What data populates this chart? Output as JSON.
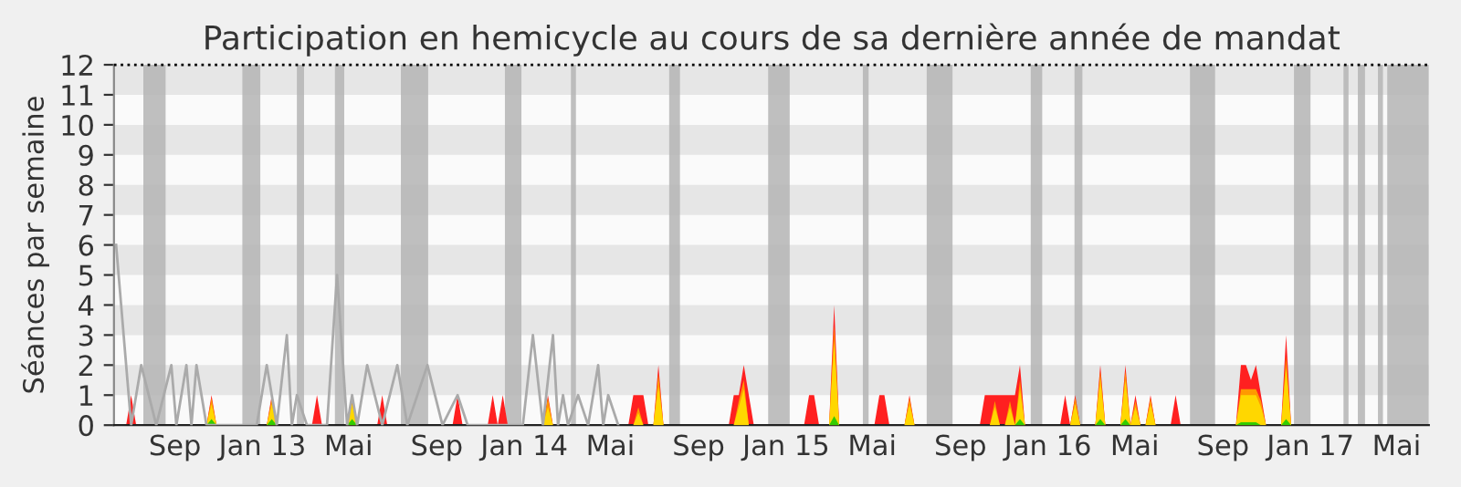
{
  "chart_data": {
    "type": "area",
    "title": "Participation en hemicycle au cours de sa dernière année de mandat",
    "ylabel": "Séances par semaine",
    "x": [
      "2012-06-25",
      "2012-07-02",
      "2012-07-09",
      "2012-10-15",
      "2012-10-22",
      "2012-10-29",
      "2013-01-07",
      "2013-01-14",
      "2013-01-21",
      "2013-03-11",
      "2013-03-18",
      "2013-03-25",
      "2013-04-29",
      "2013-05-06",
      "2013-05-13",
      "2013-06-10",
      "2013-06-17",
      "2013-06-24",
      "2013-09-23",
      "2013-09-30",
      "2013-10-07",
      "2013-11-11",
      "2013-11-18",
      "2013-11-25",
      "2013-12-02",
      "2013-12-09",
      "2014-01-27",
      "2014-02-03",
      "2014-02-10",
      "2014-05-26",
      "2014-06-02",
      "2014-06-09",
      "2014-06-16",
      "2014-06-23",
      "2014-06-30",
      "2014-07-07",
      "2014-07-14",
      "2014-10-13",
      "2014-10-20",
      "2014-10-27",
      "2014-11-03",
      "2014-11-10",
      "2014-11-17",
      "2015-01-26",
      "2015-02-02",
      "2015-02-09",
      "2015-02-16",
      "2015-03-02",
      "2015-03-09",
      "2015-03-16",
      "2015-05-04",
      "2015-05-11",
      "2015-05-18",
      "2015-05-25",
      "2015-06-15",
      "2015-06-22",
      "2015-06-29",
      "2015-09-28",
      "2015-10-05",
      "2015-10-12",
      "2015-10-19",
      "2015-10-26",
      "2015-11-02",
      "2015-11-09",
      "2015-11-16",
      "2015-11-23",
      "2015-11-30",
      "2016-01-18",
      "2016-01-25",
      "2016-02-01",
      "2016-02-08",
      "2016-02-15",
      "2016-03-07",
      "2016-03-14",
      "2016-03-21",
      "2016-04-11",
      "2016-04-18",
      "2016-04-25",
      "2016-05-02",
      "2016-05-09",
      "2016-05-16",
      "2016-05-23",
      "2016-05-30",
      "2016-06-20",
      "2016-06-27",
      "2016-07-04",
      "2016-09-19",
      "2016-09-26",
      "2016-10-03",
      "2016-10-10",
      "2016-10-17",
      "2016-10-24",
      "2016-10-31",
      "2016-11-21",
      "2016-11-28",
      "2016-12-05"
    ],
    "series": [
      {
        "color": "#ff2020",
        "values": [
          0,
          1,
          0,
          0,
          1,
          0,
          0,
          1,
          0,
          0,
          1,
          0,
          0,
          1,
          0,
          0,
          1,
          0,
          0,
          1,
          0,
          0,
          1,
          0,
          1,
          0,
          0,
          1,
          0,
          0,
          1,
          1,
          1,
          0,
          0,
          2,
          0,
          0,
          1,
          1,
          2,
          1,
          0,
          0,
          1,
          1,
          0,
          0,
          4,
          0,
          0,
          1,
          1,
          0,
          0,
          1,
          0,
          0,
          1,
          1,
          1,
          1,
          1,
          1,
          1,
          2,
          0,
          0,
          1,
          0,
          1,
          0,
          0,
          2,
          0,
          0,
          2,
          0,
          1,
          0,
          0,
          1,
          0,
          0,
          1,
          0,
          0,
          2,
          2,
          1.5,
          2,
          1,
          0,
          0,
          3,
          0
        ]
      },
      {
        "color": "#ff9900",
        "values": [
          0,
          0,
          0,
          0,
          0.9,
          0,
          0,
          0.9,
          0,
          0,
          0,
          0,
          0,
          0.9,
          0,
          0,
          0,
          0,
          0,
          0,
          0,
          0,
          0,
          0,
          0,
          0,
          0,
          0.9,
          0,
          0,
          0,
          0.6,
          0,
          0,
          0,
          1.7,
          0,
          0,
          0,
          0.8,
          1.5,
          0,
          0,
          0,
          0,
          0,
          0,
          0,
          3.3,
          0,
          0,
          0,
          0,
          0,
          0,
          0.9,
          0,
          0,
          0,
          0,
          0.8,
          0,
          0,
          0.8,
          0,
          1.5,
          0,
          0,
          0,
          0,
          0.9,
          0,
          0,
          1.8,
          0,
          0,
          1.8,
          0,
          0.8,
          0,
          0,
          0.9,
          0,
          0,
          0,
          0,
          0,
          1.2,
          1.2,
          1.2,
          1.2,
          0.8,
          0,
          0,
          2.3,
          0
        ]
      },
      {
        "color": "#ffd700",
        "values": [
          0,
          0,
          0,
          0,
          0.7,
          0,
          0,
          0.7,
          0,
          0,
          0,
          0,
          0,
          0.7,
          0,
          0,
          0,
          0,
          0,
          0,
          0,
          0,
          0,
          0,
          0,
          0,
          0,
          0.6,
          0,
          0,
          0,
          0.4,
          0,
          0,
          0,
          1.3,
          0,
          0,
          0,
          0.6,
          1.2,
          0,
          0,
          0,
          0,
          0,
          0,
          0,
          2.8,
          0,
          0,
          0,
          0,
          0,
          0,
          0.7,
          0,
          0,
          0,
          0,
          0.6,
          0,
          0,
          0.6,
          0,
          1.2,
          0,
          0,
          0,
          0,
          0.7,
          0,
          0,
          1.5,
          0,
          0,
          1.5,
          0,
          0.6,
          0,
          0,
          0.7,
          0,
          0,
          0,
          0,
          0,
          1,
          1,
          1,
          1,
          0.6,
          0,
          0,
          1.9,
          0
        ]
      },
      {
        "color": "#33cc00",
        "values": [
          0,
          0,
          0,
          0,
          0.2,
          0,
          0,
          0.2,
          0,
          0,
          0,
          0,
          0,
          0.2,
          0,
          0,
          0,
          0,
          0,
          0,
          0,
          0,
          0,
          0,
          0,
          0,
          0,
          0,
          0,
          0,
          0,
          0,
          0,
          0,
          0,
          0,
          0,
          0,
          0,
          0,
          0,
          0,
          0,
          0,
          0,
          0,
          0,
          0,
          0.3,
          0,
          0,
          0,
          0,
          0,
          0,
          0,
          0,
          0,
          0,
          0,
          0,
          0,
          0,
          0,
          0,
          0.2,
          0,
          0,
          0,
          0,
          0,
          0,
          0,
          0.2,
          0,
          0,
          0.2,
          0,
          0,
          0,
          0,
          0,
          0,
          0,
          0,
          0,
          0,
          0.1,
          0.1,
          0.1,
          0.1,
          0,
          0,
          0,
          0.2,
          0
        ]
      },
      {
        "type": "line",
        "color": "#aaaaaa",
        "x": [
          "2012-06-11",
          "2012-07-02",
          "2012-07-16",
          "2012-08-06",
          "2012-08-27",
          "2012-09-03",
          "2012-09-17",
          "2012-09-24",
          "2012-10-01",
          "2012-10-15",
          "2012-12-24",
          "2013-01-07",
          "2013-01-21",
          "2013-02-04",
          "2013-02-11",
          "2013-02-18",
          "2013-03-04",
          "2013-04-01",
          "2013-04-15",
          "2013-04-29",
          "2013-05-06",
          "2013-05-13",
          "2013-05-27",
          "2013-06-17",
          "2013-07-08",
          "2013-07-22",
          "2013-08-19",
          "2013-09-09",
          "2013-09-30",
          "2013-10-14",
          "2013-12-30",
          "2014-01-13",
          "2014-01-27",
          "2014-02-10",
          "2014-02-17",
          "2014-02-24",
          "2014-03-03",
          "2014-03-17",
          "2014-03-31",
          "2014-04-14",
          "2014-04-21",
          "2014-04-28",
          "2014-05-12"
        ],
        "values": [
          6,
          0,
          2,
          0,
          2,
          0,
          2,
          0,
          2,
          0,
          0,
          2,
          0,
          3,
          0,
          1,
          0,
          0,
          5,
          0,
          1,
          0,
          2,
          0,
          2,
          0,
          2,
          0,
          1,
          0,
          0,
          3,
          0,
          3,
          0,
          1,
          0,
          1,
          0,
          2,
          0,
          1,
          0
        ]
      }
    ],
    "xlim": [
      "2012-06-08",
      "2017-06-15"
    ],
    "xticks": [
      {
        "value": "2012-09-01",
        "label": "Sep"
      },
      {
        "value": "2013-01-01",
        "label": "Jan 13"
      },
      {
        "value": "2013-05-01",
        "label": "Mai"
      },
      {
        "value": "2013-09-01",
        "label": "Sep"
      },
      {
        "value": "2014-01-01",
        "label": "Jan 14"
      },
      {
        "value": "2014-05-01",
        "label": "Mai"
      },
      {
        "value": "2014-09-01",
        "label": "Sep"
      },
      {
        "value": "2015-01-01",
        "label": "Jan 15"
      },
      {
        "value": "2015-05-01",
        "label": "Mai"
      },
      {
        "value": "2015-09-01",
        "label": "Sep"
      },
      {
        "value": "2016-01-01",
        "label": "Jan 16"
      },
      {
        "value": "2016-05-01",
        "label": "Mai"
      },
      {
        "value": "2016-09-01",
        "label": "Sep"
      },
      {
        "value": "2017-01-01",
        "label": "Jan 17"
      },
      {
        "value": "2017-05-01",
        "label": "Mai"
      }
    ],
    "ylim": [
      0,
      12
    ],
    "yticks": [
      0,
      1,
      2,
      3,
      4,
      5,
      6,
      7,
      8,
      9,
      10,
      11,
      12
    ],
    "ref_lines": [
      {
        "axis": "y",
        "value": 12,
        "color": "#000000",
        "line_style": "dotted"
      }
    ],
    "bands": [
      {
        "axis": "y",
        "from": 1,
        "to": 2,
        "color": "#e6e6e6"
      },
      {
        "axis": "y",
        "from": 3,
        "to": 4,
        "color": "#e6e6e6"
      },
      {
        "axis": "y",
        "from": 5,
        "to": 6,
        "color": "#e6e6e6"
      },
      {
        "axis": "y",
        "from": 7,
        "to": 8,
        "color": "#e6e6e6"
      },
      {
        "axis": "y",
        "from": 9,
        "to": 10,
        "color": "#e6e6e6"
      },
      {
        "axis": "y",
        "from": 11,
        "to": 12,
        "color": "#e6e6e6"
      },
      {
        "axis": "x",
        "from": "2012-07-19",
        "to": "2012-08-19",
        "color": "#b4b4b4"
      },
      {
        "axis": "x",
        "from": "2012-12-04",
        "to": "2012-12-29",
        "color": "#b4b4b4"
      },
      {
        "axis": "x",
        "from": "2013-02-18",
        "to": "2013-02-28",
        "color": "#b4b4b4"
      },
      {
        "axis": "x",
        "from": "2013-04-12",
        "to": "2013-04-25",
        "color": "#b4b4b4"
      },
      {
        "axis": "x",
        "from": "2013-07-13",
        "to": "2013-08-20",
        "color": "#b4b4b4"
      },
      {
        "axis": "x",
        "from": "2013-12-05",
        "to": "2013-12-28",
        "color": "#b4b4b4"
      },
      {
        "axis": "x",
        "from": "2014-03-07",
        "to": "2014-03-14",
        "color": "#b4b4b4"
      },
      {
        "axis": "x",
        "from": "2014-07-22",
        "to": "2014-08-06",
        "color": "#b4b4b4"
      },
      {
        "axis": "x",
        "from": "2014-12-07",
        "to": "2015-01-06",
        "color": "#b4b4b4"
      },
      {
        "axis": "x",
        "from": "2015-04-18",
        "to": "2015-04-26",
        "color": "#b4b4b4"
      },
      {
        "axis": "x",
        "from": "2015-07-16",
        "to": "2015-08-21",
        "color": "#b4b4b4"
      },
      {
        "axis": "x",
        "from": "2015-12-08",
        "to": "2015-12-24",
        "color": "#b4b4b4"
      },
      {
        "axis": "x",
        "from": "2016-02-07",
        "to": "2016-02-18",
        "color": "#b4b4b4"
      },
      {
        "axis": "x",
        "from": "2016-07-17",
        "to": "2016-08-21",
        "color": "#b4b4b4"
      },
      {
        "axis": "x",
        "from": "2016-12-09",
        "to": "2017-01-01",
        "color": "#b4b4b4"
      },
      {
        "axis": "x",
        "from": "2017-02-16",
        "to": "2017-02-23",
        "color": "#b4b4b4"
      },
      {
        "axis": "x",
        "from": "2017-03-08",
        "to": "2017-03-18",
        "color": "#b4b4b4"
      },
      {
        "axis": "x",
        "from": "2017-04-05",
        "to": "2017-04-12",
        "color": "#b4b4b4"
      },
      {
        "axis": "x",
        "from": "2017-04-18",
        "to": "2017-06-15",
        "color": "#b4b4b4"
      }
    ]
  }
}
